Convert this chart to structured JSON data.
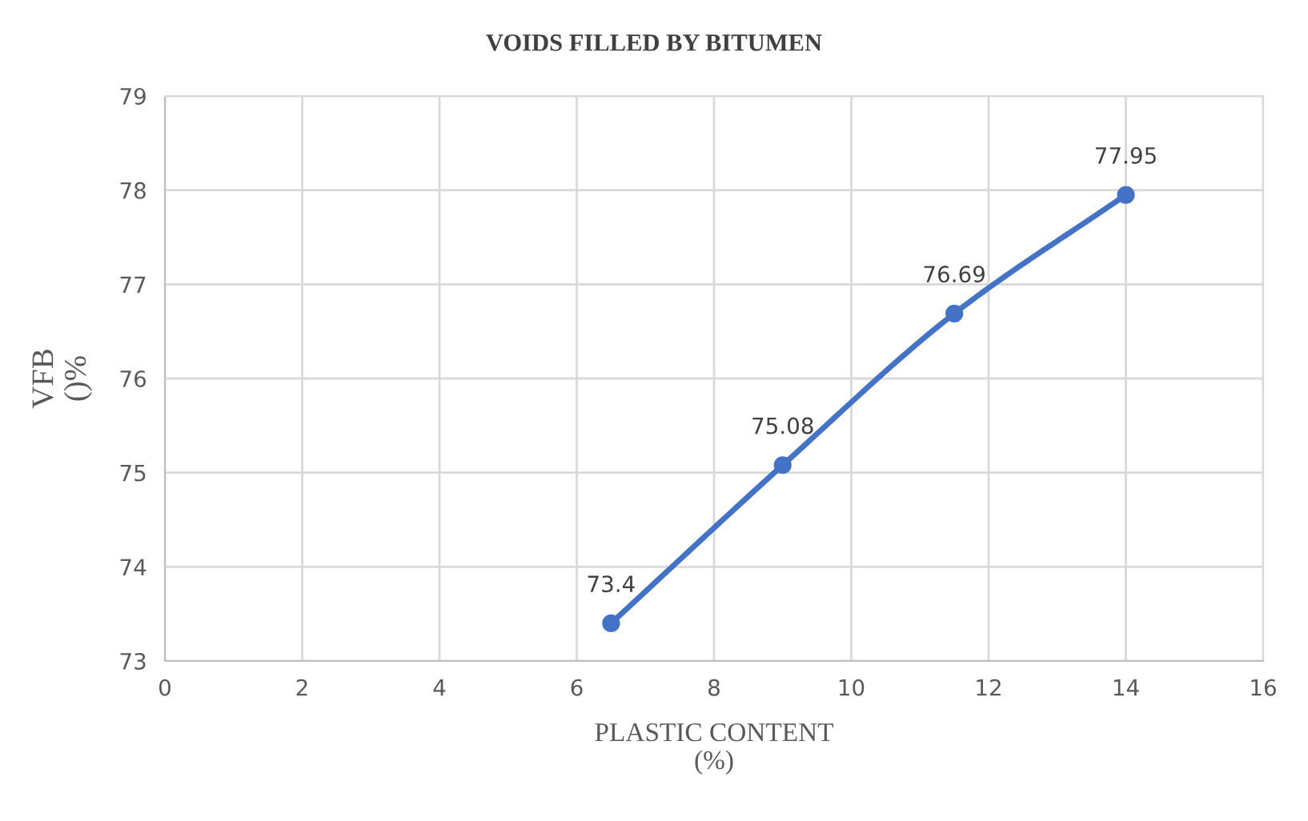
{
  "chart_data": {
    "type": "line",
    "title": "VOIDS FILLED BY BITUMEN",
    "xlabel": "PLASTIC CONTENT\n(%)",
    "ylabel": "VFB\n()%",
    "x": [
      6.5,
      9,
      11.5,
      14
    ],
    "series": [
      {
        "color": "#4472c4",
        "values": [
          73.4,
          75.08,
          76.69,
          77.95
        ]
      }
    ],
    "xlim": [
      0,
      16
    ],
    "xticks": [
      0,
      2,
      4,
      6,
      8,
      10,
      12,
      14,
      16
    ],
    "ylim": [
      73,
      79
    ],
    "yticks": [
      73,
      74,
      75,
      76,
      77,
      78,
      79
    ],
    "grid": true,
    "marker": "circle",
    "line_style": "solid",
    "data_labels": true
  }
}
